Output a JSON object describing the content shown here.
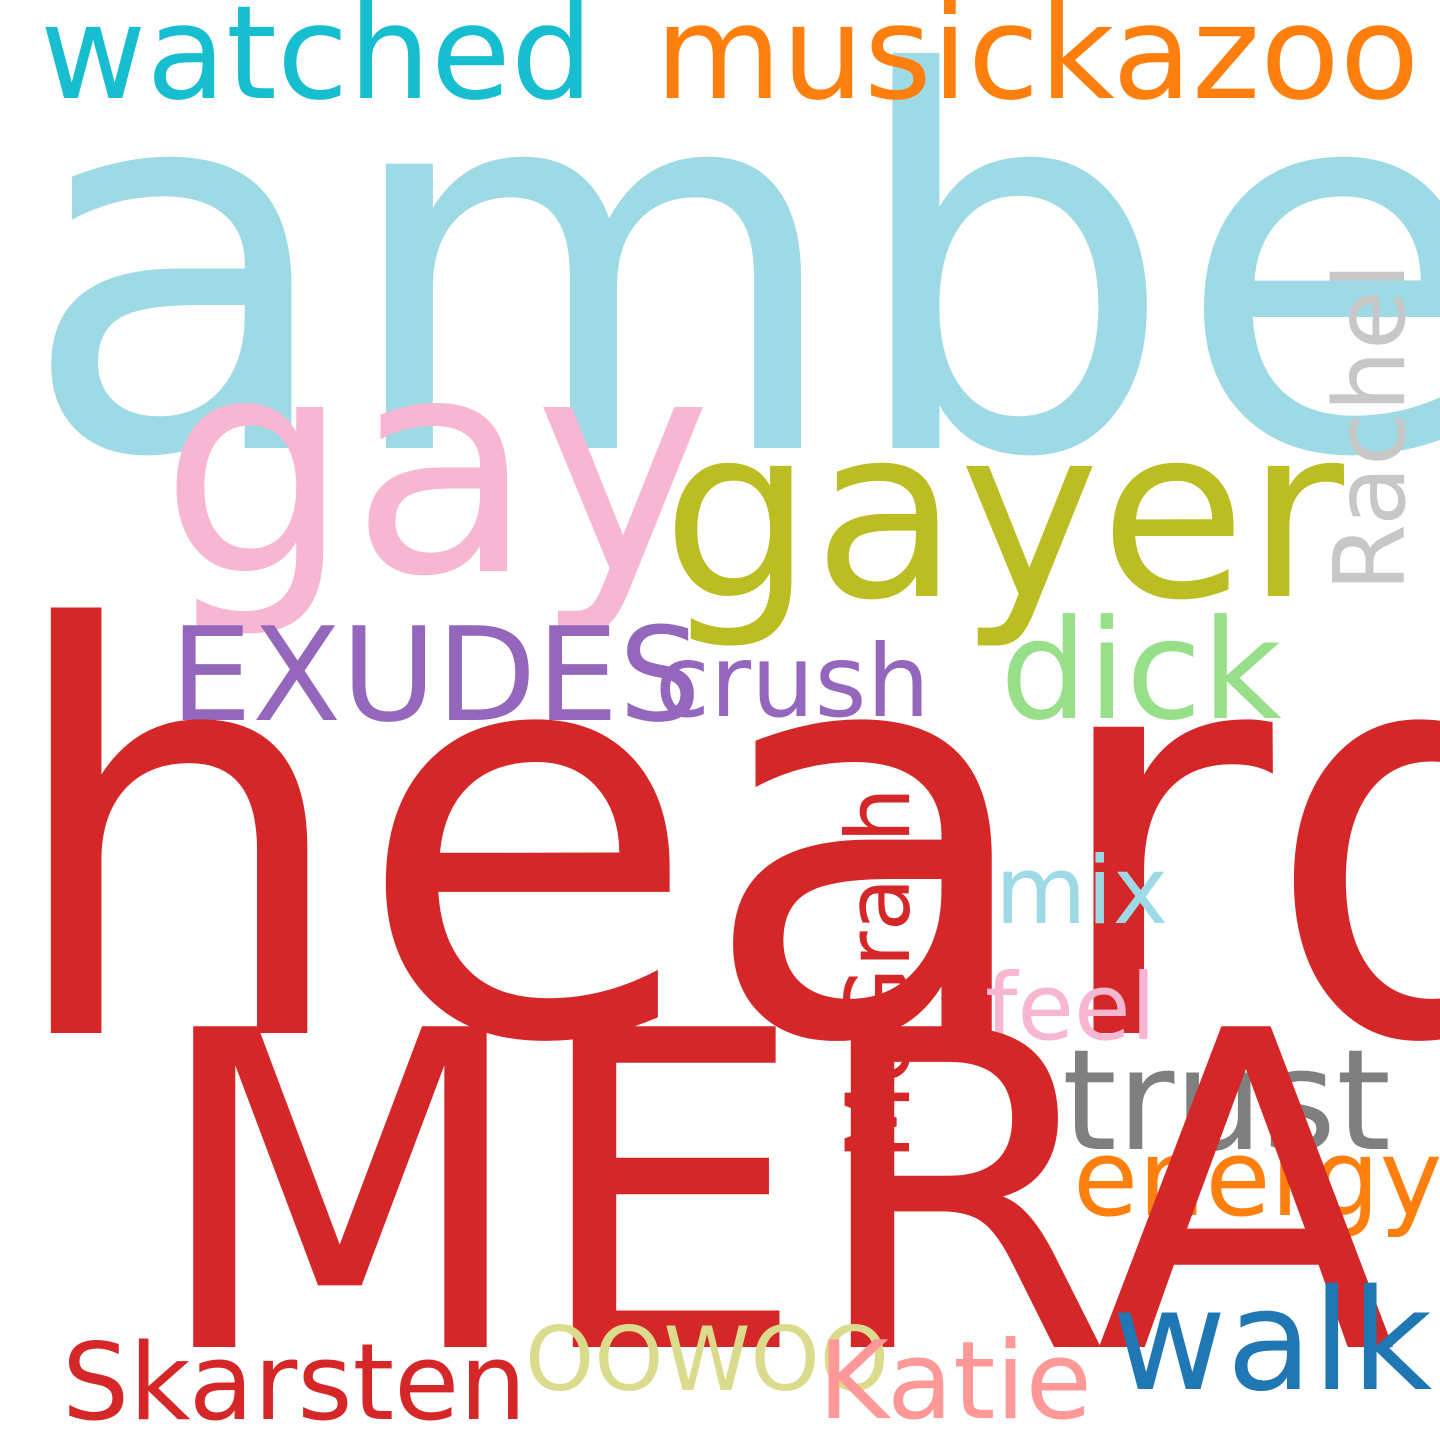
{
  "words": {
    "amber": {
      "text": "amber",
      "color": "#9edae5"
    },
    "heard": {
      "text": "heard",
      "color": "#d62728"
    },
    "mera": {
      "text": "MERA",
      "color": "#d62728"
    },
    "gay": {
      "text": "gay",
      "color": "#f7b6d2"
    },
    "gayer": {
      "text": "gayer",
      "color": "#bcbd22"
    },
    "watched": {
      "text": "watched",
      "color": "#17becf"
    },
    "musickazoo": {
      "text": "musickazoo",
      "color": "#ff7f0e"
    },
    "exudes": {
      "text": "EXUDES",
      "color": "#9467bd"
    },
    "crush": {
      "text": "crush",
      "color": "#9467bd"
    },
    "dick": {
      "text": "dick",
      "color": "#98df8a"
    },
    "mix": {
      "text": "mix",
      "color": "#9edae5"
    },
    "feel": {
      "text": "feel",
      "color": "#f7b6d2"
    },
    "trust": {
      "text": "trust",
      "color": "#7f7f7f"
    },
    "energy": {
      "text": "energy",
      "color": "#ff7f0e"
    },
    "walk": {
      "text": "walk",
      "color": "#1f77b4"
    },
    "skarsten": {
      "text": "Skarsten",
      "color": "#d62728"
    },
    "oowoo": {
      "text": "OOWOO",
      "color": "#dbdb8d"
    },
    "katie": {
      "text": "Katie",
      "color": "#ff9896"
    },
    "rachel": {
      "text": "Rachel",
      "color": "#c7c7c7"
    },
    "mcgrath": {
      "text": "McGrath",
      "color": "#d62728"
    }
  }
}
